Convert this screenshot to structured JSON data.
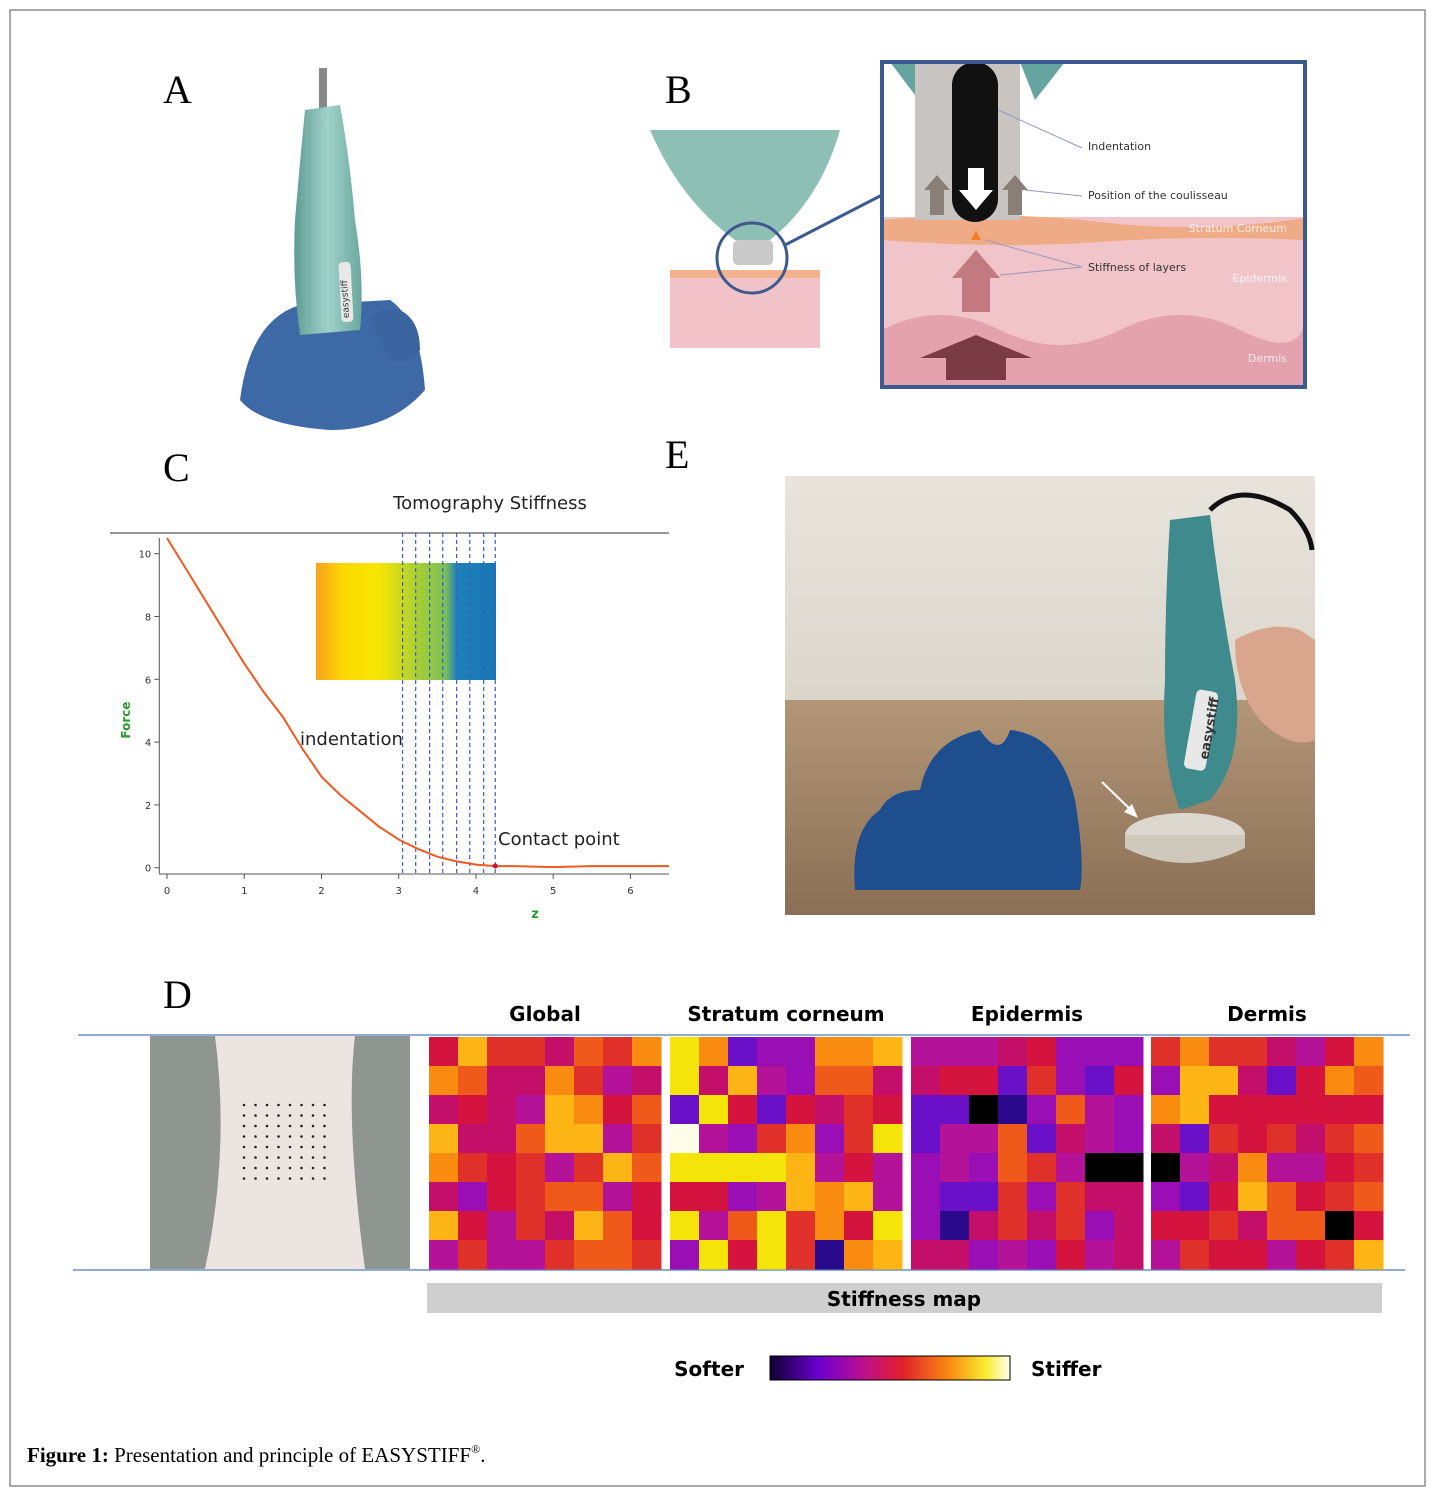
{
  "panels": {
    "a": "A",
    "b": "B",
    "c": "C",
    "d": "D",
    "e": "E"
  },
  "device_label": "easystiff",
  "diagram_b": {
    "callouts": [
      "Indentation",
      "Position of the coulisseau",
      "Stiffness of layers"
    ],
    "layers": [
      "Stratum Corneum",
      "Epidermis",
      "Dermis"
    ]
  },
  "chart_data": {
    "type": "line",
    "title": "Tomography Stiffness",
    "xlabel": "z",
    "ylabel": "Force",
    "x": [
      0,
      0.25,
      0.5,
      0.75,
      1,
      1.25,
      1.5,
      1.75,
      2,
      2.25,
      2.5,
      2.75,
      3,
      3.25,
      3.5,
      3.75,
      4,
      4.25,
      4.5,
      5,
      5.5,
      6,
      6.5
    ],
    "series": [
      {
        "name": "Force",
        "color": "#f05a22",
        "values": [
          10.5,
          9.5,
          8.5,
          7.5,
          6.5,
          5.6,
          4.8,
          3.8,
          2.9,
          2.3,
          1.8,
          1.3,
          0.9,
          0.6,
          0.35,
          0.2,
          0.1,
          0.05,
          0.05,
          0.02,
          0.05,
          0.05,
          0.05
        ]
      }
    ],
    "xlim": [
      -0.1,
      6.5
    ],
    "ylim": [
      -0.2,
      10.5
    ],
    "xticks": [
      0,
      1,
      2,
      3,
      4,
      5,
      6
    ],
    "yticks": [
      0,
      2,
      4,
      6,
      8,
      10
    ],
    "tomography_lines": [
      3.05,
      3.22,
      3.4,
      3.57,
      3.75,
      3.92,
      4.1,
      4.25
    ],
    "line_color": "#3a5fc8",
    "annotations": [
      "indentation",
      "Contact point"
    ]
  },
  "stiffness_map": {
    "titles": [
      "Global",
      "Stratum corneum",
      "Epidermis",
      "Dermis"
    ],
    "bar_label": "Stiffness map",
    "softer": "Softer",
    "stiffer": "Stiffer"
  },
  "caption": {
    "label": "Figure 1:",
    "text": "Presentation and principle of EASYSTIFF",
    "mark": "®",
    "end": "."
  }
}
